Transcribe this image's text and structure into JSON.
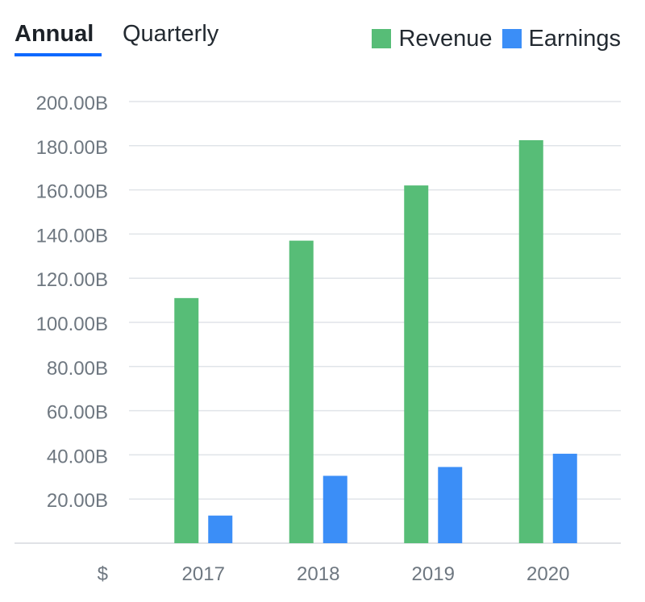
{
  "tabs": {
    "annual": "Annual",
    "quarterly": "Quarterly"
  },
  "colors": {
    "revenue": "#57bd77",
    "earnings": "#3b8ef7",
    "grid": "#e0e4e9",
    "axis_text": "#6e7780",
    "tab_underline": "#0f69ff"
  },
  "chart_data": {
    "type": "bar",
    "categories": [
      "2017",
      "2018",
      "2019",
      "2020"
    ],
    "series": [
      {
        "name": "Revenue",
        "values": [
          111,
          137,
          162,
          182.5
        ]
      },
      {
        "name": "Earnings",
        "values": [
          12.5,
          30.5,
          34.5,
          40.5
        ]
      }
    ],
    "ylim": [
      0,
      200
    ],
    "ytick_values": [
      20,
      40,
      60,
      80,
      100,
      120,
      140,
      160,
      180,
      200
    ],
    "ytick_labels": [
      "20.00B",
      "40.00B",
      "60.00B",
      "80.00B",
      "100.00B",
      "120.00B",
      "140.00B",
      "160.00B",
      "180.00B",
      "200.00B"
    ],
    "y_unit_label": "$",
    "grid": true,
    "legend_position": "top-right"
  }
}
